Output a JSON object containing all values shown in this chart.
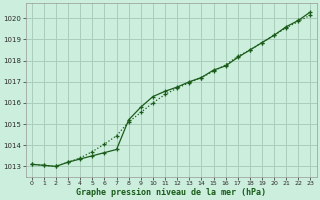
{
  "line1_x": [
    0,
    1,
    2,
    3,
    4,
    5,
    6,
    7,
    8,
    9,
    10,
    11,
    12,
    13,
    14,
    15,
    16,
    17,
    18,
    19,
    20,
    21,
    22,
    23
  ],
  "line1_y": [
    1013.1,
    1013.05,
    1013.0,
    1013.2,
    1013.35,
    1013.5,
    1013.65,
    1013.8,
    1015.2,
    1015.8,
    1016.3,
    1016.55,
    1016.75,
    1017.0,
    1017.2,
    1017.55,
    1017.75,
    1018.15,
    1018.5,
    1018.85,
    1019.2,
    1019.6,
    1019.9,
    1020.3
  ],
  "line2_x": [
    0,
    1,
    2,
    3,
    4,
    5,
    6,
    7,
    8,
    9,
    10,
    11,
    12,
    13,
    14,
    15,
    16,
    17,
    18,
    19,
    20,
    21,
    22,
    23
  ],
  "line2_y": [
    1013.1,
    1013.05,
    1013.0,
    1013.2,
    1013.4,
    1013.7,
    1014.05,
    1014.45,
    1015.1,
    1015.55,
    1016.0,
    1016.4,
    1016.7,
    1016.95,
    1017.2,
    1017.5,
    1017.8,
    1018.2,
    1018.5,
    1018.85,
    1019.2,
    1019.55,
    1019.85,
    1020.15
  ],
  "line_color": "#1a5c1a",
  "bg_color": "#cceedd",
  "grid_color": "#aaccbb",
  "xlabel": "Graphe pression niveau de la mer (hPa)",
  "xlim": [
    -0.5,
    23.5
  ],
  "ylim": [
    1012.5,
    1020.7
  ],
  "yticks": [
    1013,
    1014,
    1015,
    1016,
    1017,
    1018,
    1019,
    1020
  ],
  "xticks": [
    0,
    1,
    2,
    3,
    4,
    5,
    6,
    7,
    8,
    9,
    10,
    11,
    12,
    13,
    14,
    15,
    16,
    17,
    18,
    19,
    20,
    21,
    22,
    23
  ]
}
